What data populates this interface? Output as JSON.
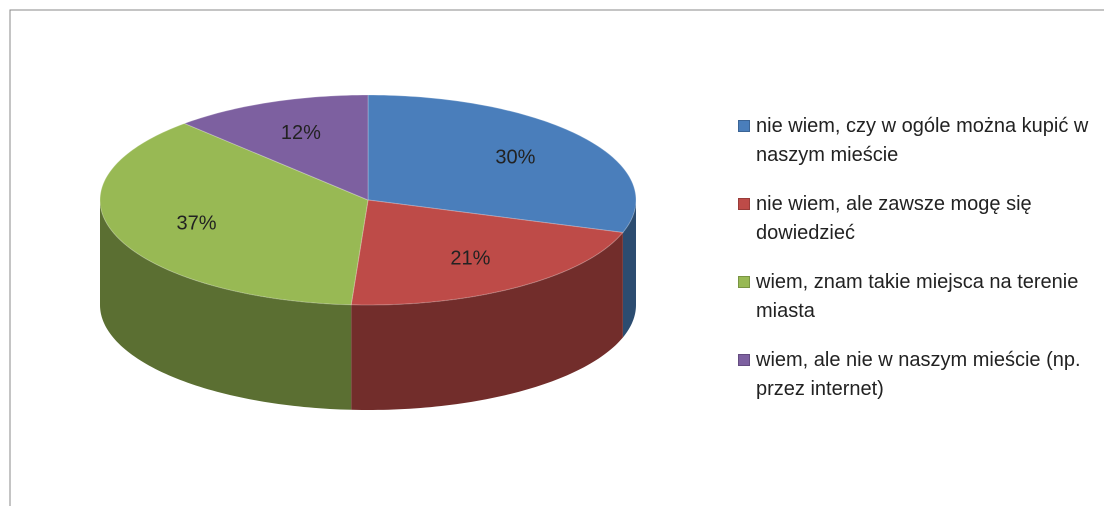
{
  "chart_data": {
    "type": "pie",
    "categories": [
      "nie wiem, czy w ogóle można kupić w naszym mieście",
      "nie wiem, ale zawsze mogę się dowiedzieć",
      "wiem, znam takie miejsca na terenie miasta",
      "wiem, ale nie w naszym mieście (np. przez internet)"
    ],
    "values": [
      30,
      21,
      37,
      12
    ],
    "value_labels": [
      "30%",
      "21%",
      "37%",
      "12%"
    ],
    "colors": [
      "#4a7ebb",
      "#be4b48",
      "#98b954",
      "#7d60a0"
    ],
    "legend": "right"
  }
}
